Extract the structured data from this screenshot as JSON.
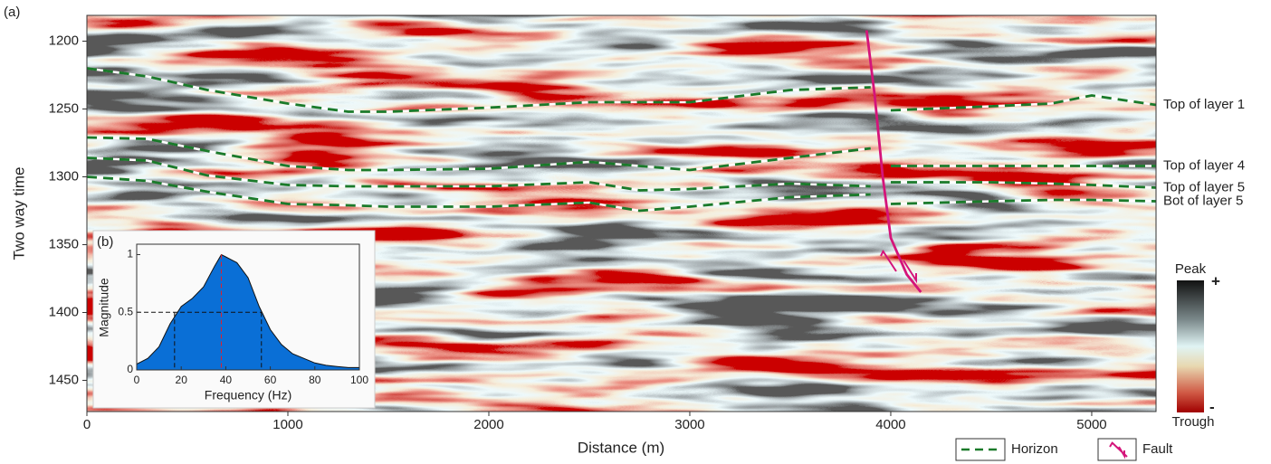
{
  "chart_data": {
    "type": "seismic",
    "panel_label": "(a)",
    "xlabel": "Distance (m)",
    "ylabel": "Two way time",
    "xlim": [
      0,
      5320
    ],
    "ylim": [
      1473,
      1181
    ],
    "xticks": [
      0,
      1000,
      2000,
      3000,
      4000,
      5000
    ],
    "yticks": [
      1200,
      1250,
      1300,
      1350,
      1400,
      1450
    ],
    "x": [
      0,
      300,
      600,
      1000,
      1300,
      1500,
      2000,
      2500,
      2750,
      3000,
      3500,
      3900,
      3950,
      4000,
      4500,
      4800,
      5000,
      5320
    ],
    "series": [
      {
        "name": "Top of layer 1",
        "color": "#1a7a2a",
        "values": [
          1220,
          1226,
          1236,
          1246,
          1252,
          1252,
          1249,
          1245,
          1245,
          1245,
          1236,
          1234,
          null,
          1251,
          1248,
          1246,
          1240,
          1247
        ]
      },
      {
        "name": "Top of layer 4",
        "color": "#1a7a2a",
        "values": [
          1271,
          1272,
          1281,
          1292,
          1295,
          1295,
          1294,
          1289,
          1292,
          1295,
          1286,
          1279,
          null,
          1292,
          1292,
          1292,
          1292,
          1292
        ]
      },
      {
        "name": "Top of layer 5",
        "color": "#1a7a2a",
        "values": [
          1286,
          1288,
          1299,
          1306,
          1307,
          1307,
          1307,
          1304,
          1310,
          1309,
          1305,
          1307,
          null,
          1304,
          1304,
          1305,
          1306,
          1308
        ]
      },
      {
        "name": "Bot of layer 5",
        "color": "#1a7a2a",
        "values": [
          1300,
          1303,
          1311,
          1320,
          1321,
          1322,
          1322,
          1319,
          1325,
          1322,
          1315,
          1313,
          null,
          1320,
          1318,
          1317,
          1317,
          1318
        ]
      }
    ],
    "fault": {
      "color": "#d4147a",
      "x": [
        3880,
        3920,
        3960,
        4000,
        4080,
        4150
      ],
      "y": [
        1192,
        1240,
        1300,
        1345,
        1372,
        1385
      ]
    },
    "legend": [
      {
        "name": "Horizon",
        "color": "#1a7a2a"
      },
      {
        "name": "Fault",
        "color": "#d4147a"
      }
    ],
    "colorbar": {
      "top": "Peak",
      "bottom": "Trough",
      "plus": "+",
      "minus": "-"
    },
    "inset": {
      "type": "area",
      "panel_label": "(b)",
      "xlabel": "Frequency (Hz)",
      "ylabel": "Magnitude",
      "color": "#0a6fd6",
      "xlim": [
        0,
        100
      ],
      "ylim": [
        0,
        1.09
      ],
      "xticks": [
        0,
        20,
        40,
        60,
        80,
        100
      ],
      "yticks": [
        0,
        0.5,
        1
      ],
      "x": [
        0,
        5,
        10,
        15,
        20,
        25,
        30,
        35,
        38,
        40,
        45,
        50,
        55,
        60,
        65,
        70,
        75,
        80,
        85,
        90,
        95,
        100
      ],
      "values": [
        0.05,
        0.1,
        0.2,
        0.4,
        0.55,
        0.62,
        0.72,
        0.9,
        1.0,
        0.98,
        0.93,
        0.8,
        0.55,
        0.35,
        0.22,
        0.14,
        0.1,
        0.06,
        0.04,
        0.03,
        0.02,
        0.02
      ],
      "peak": 38,
      "half_band": [
        17,
        56
      ],
      "half_level": 0.5
    }
  }
}
